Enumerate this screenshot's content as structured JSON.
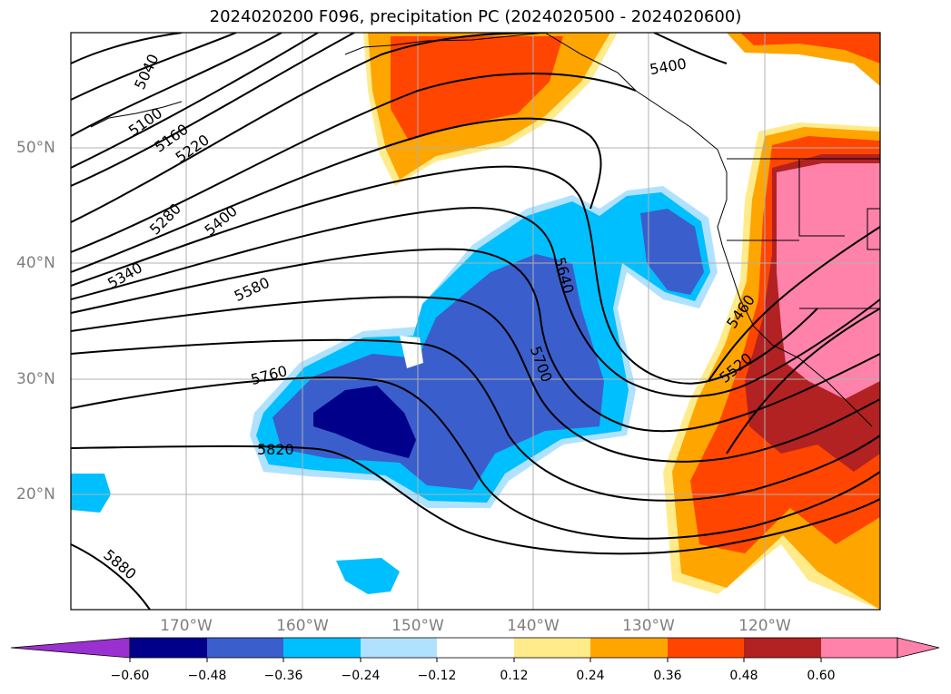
{
  "title": "2024020200 F096, precipitation PC (2024020500 - 2024020600)",
  "lat_labels": [
    "50°N",
    "40°N",
    "30°N",
    "20°N"
  ],
  "lon_labels": [
    "170°W",
    "160°W",
    "150°W",
    "140°W",
    "130°W",
    "120°W"
  ],
  "contour_labels": [
    "5040",
    "5100",
    "5160",
    "5220",
    "5280",
    "5340",
    "5400",
    "5580",
    "5640",
    "5700",
    "5760",
    "5820",
    "5880",
    "5400",
    "5460",
    "5520"
  ],
  "colorbar": {
    "ticks": [
      "−0.60",
      "−0.48",
      "−0.36",
      "−0.24",
      "−0.12",
      "0.12",
      "0.24",
      "0.36",
      "0.48",
      "0.60"
    ],
    "colors": [
      "#9b30d0",
      "#00008b",
      "#3a5fcd",
      "#00bfff",
      "#b0e2ff",
      "#ffffff",
      "#ffeb8a",
      "#ffa500",
      "#ff4500",
      "#b22222",
      "#ff82ab",
      "#ff82ab"
    ]
  },
  "colors": {
    "frame": "#000000",
    "grid": "#b0b0b0",
    "coast": "#000000"
  }
}
